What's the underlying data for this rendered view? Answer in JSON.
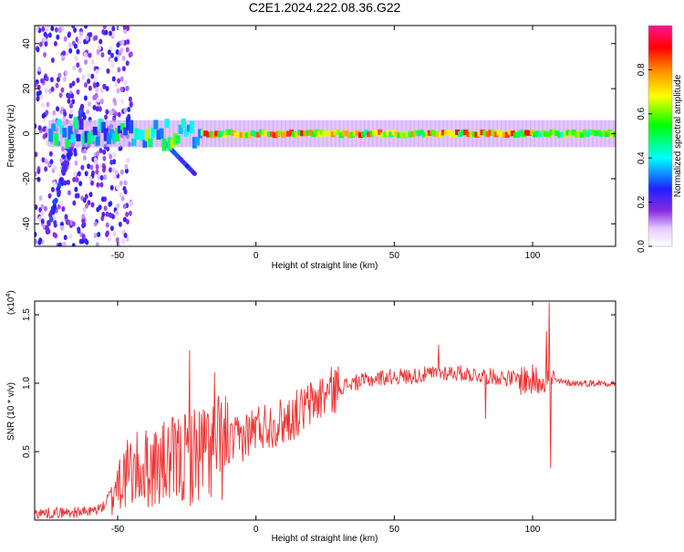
{
  "chart_data": [
    {
      "type": "heatmap",
      "title": "C2E1.2024.222.08.36.G22",
      "xlabel": "Height of straight line (km)",
      "ylabel": "Frequency (Hz)",
      "xlim": [
        -80,
        130
      ],
      "ylim": [
        -50,
        48
      ],
      "x_ticks": [
        "-50",
        "0",
        "50",
        "100"
      ],
      "y_ticks": [
        "40",
        "20",
        "0",
        "-20",
        "-40"
      ],
      "colorbar": {
        "label": "Normalized spectral amplitude",
        "ticks": [
          "0.0",
          "0.2",
          "0.4",
          "0.6",
          "0.8"
        ],
        "range": [
          0,
          1
        ]
      },
      "features": {
        "dominant_band_frequency_hz": 0,
        "band_x_range_km": [
          -60,
          130
        ],
        "peak_amplitude_region_km": [
          -20,
          100
        ],
        "diffuse_noise_x_range_km": [
          -80,
          -55
        ]
      }
    },
    {
      "type": "line",
      "xlabel": "Height of straight line (km)",
      "ylabel": "SNR (10 * v/v)",
      "y_multiplier": "(x10",
      "y_multiplier_exp": "4",
      "y_multiplier_close": ")",
      "xlim": [
        -80,
        130
      ],
      "ylim": [
        0,
        1.6
      ],
      "x_ticks": [
        "-50",
        "0",
        "50",
        "100"
      ],
      "y_ticks": [
        "1.5",
        "1.0",
        "0.5"
      ],
      "line_color": "#ee3333",
      "series": [
        {
          "x": [
            -80,
            -60,
            -55,
            -50,
            -45,
            -40,
            -35,
            -30,
            -25,
            -20,
            -15,
            -10,
            -5,
            0,
            5,
            10,
            15,
            20,
            25,
            30,
            35,
            40,
            45,
            50,
            55,
            60,
            65,
            70,
            75,
            80,
            85,
            90,
            95,
            100,
            102,
            104,
            106,
            108,
            110,
            115,
            120,
            125,
            130
          ],
          "y": [
            0.05,
            0.06,
            0.1,
            0.3,
            0.35,
            0.38,
            0.4,
            0.42,
            0.45,
            0.5,
            0.52,
            0.55,
            0.6,
            0.68,
            0.7,
            0.72,
            0.78,
            0.85,
            0.92,
            0.97,
            1.0,
            1.02,
            1.04,
            1.05,
            1.05,
            1.06,
            1.07,
            1.08,
            1.07,
            1.06,
            1.05,
            1.04,
            1.03,
            1.02,
            1.02,
            1.05,
            1.0,
            1.02,
            1.01,
            1.0,
            1.0,
            1.0,
            1.0
          ]
        }
      ],
      "spikes": [
        {
          "x": -24,
          "y": 1.24
        },
        {
          "x": -15,
          "y": 1.08
        },
        {
          "x": 66,
          "y": 1.28
        },
        {
          "x": 83,
          "y": 0.74
        },
        {
          "x": 105,
          "y": 1.38
        },
        {
          "x": 106,
          "y": 1.59
        },
        {
          "x": 106.5,
          "y": 0.38
        }
      ]
    }
  ]
}
